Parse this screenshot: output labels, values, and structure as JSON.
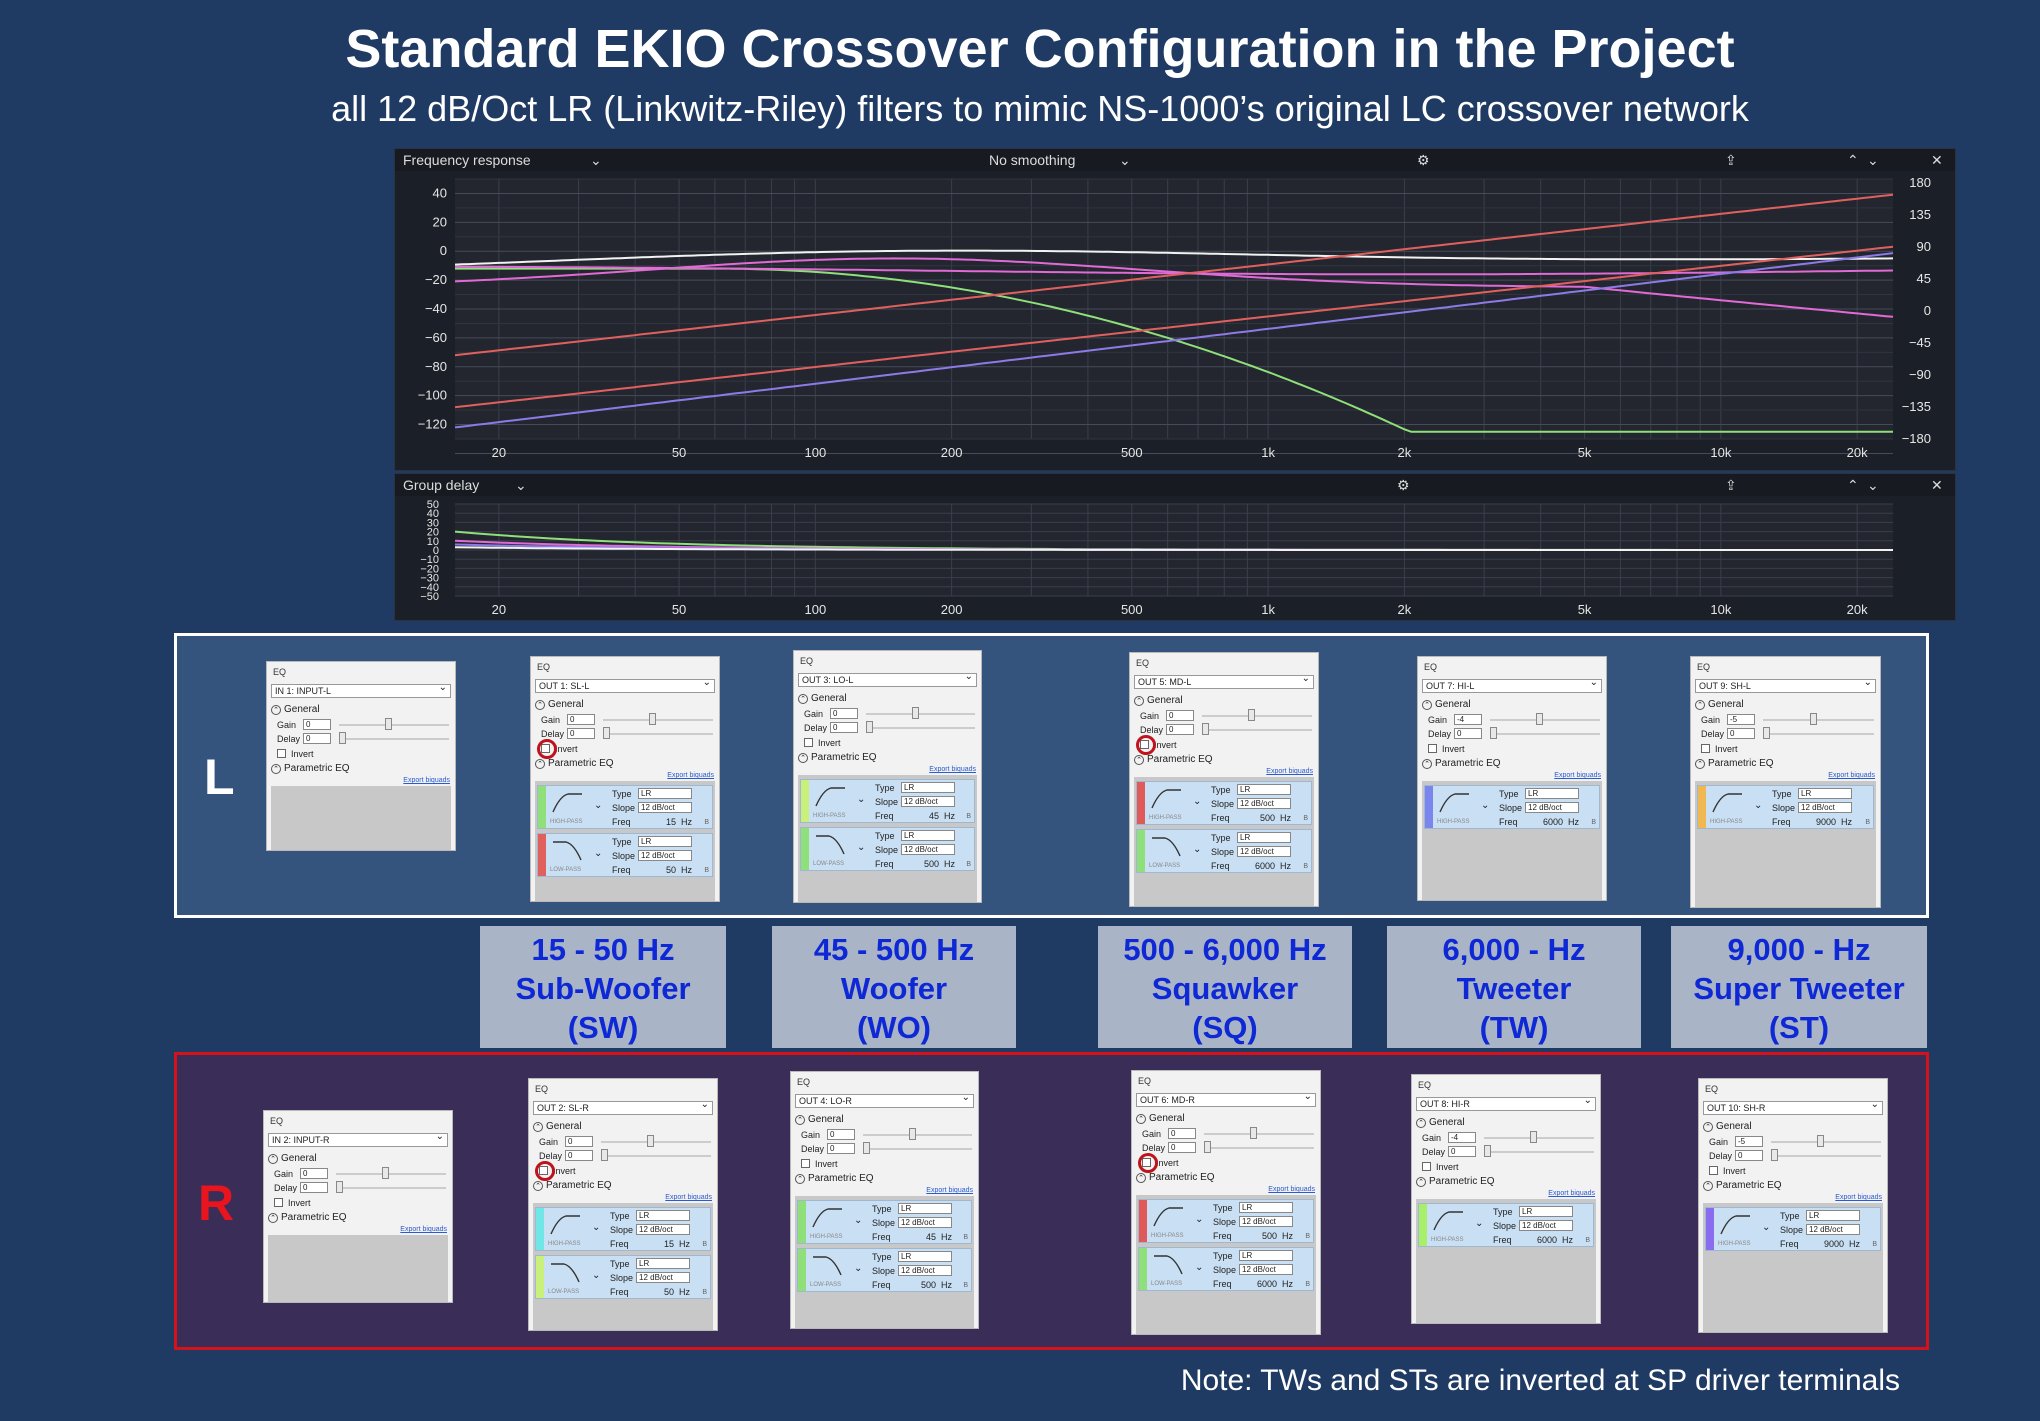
{
  "title": "Standard EKIO Crossover Configuration in the Project",
  "subtitle": "all 12 dB/Oct LR (Linkwitz-Riley) filters to mimic NS-1000’s original LC crossover network",
  "freq_panel": {
    "title": "Frequency response",
    "smoothing": "No smoothing",
    "icons": [
      "gear-icon",
      "export-icon",
      "chevron-up-icon",
      "chevron-down-icon",
      "close-icon"
    ],
    "left_axis_ticks": [
      "40",
      "20",
      "0",
      "−20",
      "−40",
      "−60",
      "−80",
      "−100",
      "−120"
    ],
    "right_axis_ticks": [
      "180",
      "135",
      "90",
      "45",
      "0",
      "−45",
      "−90",
      "−135",
      "−180"
    ],
    "x_ticks": [
      "20",
      "50",
      "100",
      "200",
      "500",
      "1k",
      "2k",
      "5k",
      "10k",
      "20k"
    ]
  },
  "delay_panel": {
    "title": "Group delay",
    "icons": [
      "gear-icon",
      "export-icon",
      "chevron-up-icon",
      "chevron-down-icon",
      "close-icon"
    ],
    "y_ticks": [
      "50",
      "40",
      "30",
      "20",
      "10",
      "0",
      "−10",
      "−20",
      "−30",
      "−40",
      "−50"
    ],
    "x_ticks": [
      "20",
      "50",
      "100",
      "200",
      "500",
      "1k",
      "2k",
      "5k",
      "10k",
      "20k"
    ]
  },
  "colors": {
    "background": "#1f3a63",
    "left_box_border": "#ffffff",
    "right_box_border": "#d4121c",
    "band_text": "#0e28d6",
    "band_bg": "#a9b4c6",
    "curve_white": "#f2f2f2",
    "curve_green": "#8fe07a",
    "curve_pink": "#e06ad6",
    "curve_red": "#e0605e",
    "curve_purple": "#8c7be6"
  },
  "left_label": "L",
  "right_label": "R",
  "eq_common": {
    "header": "EQ",
    "general": "General",
    "gain": "Gain",
    "delay": "Delay",
    "invert": "Invert",
    "parametric_eq": "Parametric EQ",
    "export_biquads": "Export biquads",
    "type_label": "Type",
    "slope_label": "Slope",
    "freq_label": "Freq",
    "type_value": "LR",
    "slope_value": "12 dB/oct",
    "hz": "Hz",
    "b_mark": "B",
    "high_pass": "HIGH-PASS",
    "low_pass": "LOW-PASS"
  },
  "left_panels": [
    {
      "channel": "IN 1: INPUT-L",
      "gain": "0",
      "delay": "0"
    },
    {
      "channel": "OUT 1: SL-L",
      "gain": "0",
      "delay": "0",
      "hp_freq": "15",
      "lp_freq": "50"
    },
    {
      "channel": "OUT 3: LO-L",
      "gain": "0",
      "delay": "0",
      "hp_freq": "45",
      "lp_freq": "500"
    },
    {
      "channel": "OUT 5: MD-L",
      "gain": "0",
      "delay": "0",
      "hp_freq": "500",
      "lp_freq": "6000"
    },
    {
      "channel": "OUT 7: HI-L",
      "gain": "-4",
      "delay": "0",
      "hp_freq": "6000"
    },
    {
      "channel": "OUT 9: SH-L",
      "gain": "-5",
      "delay": "0",
      "hp_freq": "9000"
    }
  ],
  "right_panels": [
    {
      "channel": "IN 2: INPUT-R",
      "gain": "0",
      "delay": "0"
    },
    {
      "channel": "OUT 2: SL-R",
      "gain": "0",
      "delay": "0",
      "hp_freq": "15",
      "lp_freq": "50"
    },
    {
      "channel": "OUT 4: LO-R",
      "gain": "0",
      "delay": "0",
      "hp_freq": "45",
      "lp_freq": "500"
    },
    {
      "channel": "OUT 6: MD-R",
      "gain": "0",
      "delay": "0",
      "hp_freq": "500",
      "lp_freq": "6000"
    },
    {
      "channel": "OUT 8: HI-R",
      "gain": "-4",
      "delay": "0",
      "hp_freq": "6000"
    },
    {
      "channel": "OUT 10: SH-R",
      "gain": "-5",
      "delay": "0",
      "hp_freq": "9000"
    }
  ],
  "bands": [
    {
      "range": "15 - 50 Hz",
      "name": "Sub-Woofer",
      "abbr": "(SW)"
    },
    {
      "range": "45 - 500 Hz",
      "name": "Woofer",
      "abbr": "(WO)"
    },
    {
      "range": "500 - 6,000 Hz",
      "name": "Squawker",
      "abbr": "(SQ)"
    },
    {
      "range": "6,000 -   Hz",
      "name": "Tweeter",
      "abbr": "(TW)"
    },
    {
      "range": "9,000 -    Hz",
      "name": "Super Tweeter",
      "abbr": "(ST)"
    }
  ],
  "note": "Note: TWs and STs are inverted at SP driver terminals"
}
